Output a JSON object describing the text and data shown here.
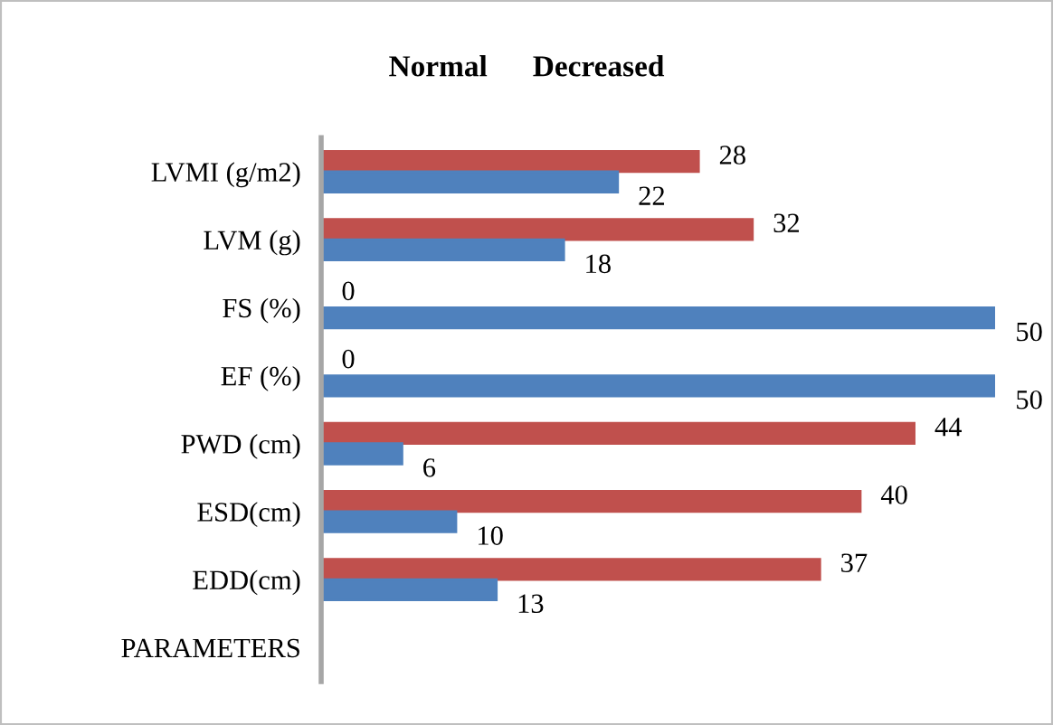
{
  "chart_data": {
    "type": "bar",
    "orientation": "horizontal",
    "title": "Normal      Decreased",
    "categories": [
      "LVMI (g/m2)",
      "LVM (g)",
      "FS (%)",
      "EF (%)",
      "PWD (cm)",
      "ESD(cm)",
      "EDD(cm)",
      "PARAMETERS"
    ],
    "series": [
      {
        "color": "#c0504d",
        "values": [
          28,
          32,
          0,
          0,
          44,
          40,
          37,
          0
        ],
        "value_labels": [
          "28",
          "32",
          "0",
          "0",
          "44",
          "40",
          "37",
          null
        ]
      },
      {
        "color": "#4f81bd",
        "values": [
          22,
          18,
          50,
          50,
          6,
          10,
          13,
          null
        ],
        "value_labels": [
          "22",
          "18",
          "50",
          "50",
          "6",
          "10",
          "13",
          null
        ]
      }
    ],
    "grid": false,
    "legend": false,
    "tick_labels": "y"
  }
}
